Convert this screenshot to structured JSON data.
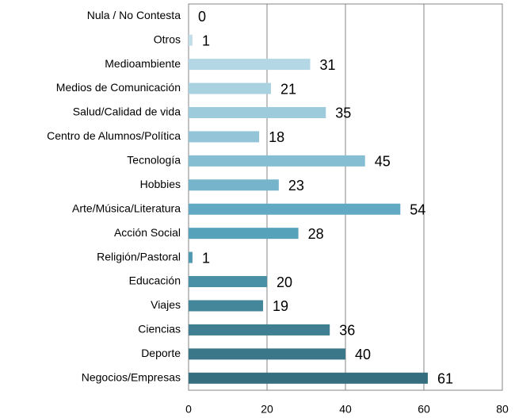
{
  "chart_data": {
    "type": "barh",
    "categories": [
      "Nula / No Contesta",
      "Otros",
      "Medioambiente",
      "Medios de Comunicación",
      "Salud/Calidad de vida",
      "Centro de Alumnos/Política",
      "Tecnología",
      "Hobbies",
      "Arte/Música/Literatura",
      "Acción Social",
      "Religión/Pastoral",
      "Educación",
      "Viajes",
      "Ciencias",
      "Deporte",
      "Negocios/Empresas"
    ],
    "values": [
      0,
      1,
      31,
      21,
      35,
      18,
      45,
      23,
      54,
      28,
      1,
      20,
      19,
      36,
      40,
      61
    ],
    "colors": [
      "#cde5ed",
      "#c2dfe9",
      "#b3d7e4",
      "#a9d2e0",
      "#9ecbdc",
      "#93c4d7",
      "#85bdd2",
      "#75b4cb",
      "#62aac4",
      "#57a2bb",
      "#4f99b1",
      "#4990a6",
      "#44879b",
      "#3f7f91",
      "#3a7788",
      "#356f7f"
    ],
    "xlim": [
      0,
      80
    ],
    "xticks": [
      0,
      20,
      40,
      60,
      80
    ],
    "grid": true
  }
}
